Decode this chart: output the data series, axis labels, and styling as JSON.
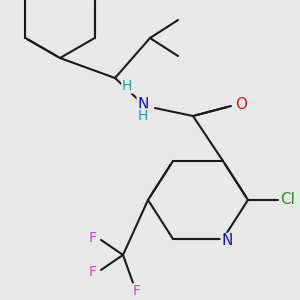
{
  "background_color": "#e8e8e8",
  "bond_color": "#1a1a1a",
  "atom_colors": {
    "N": "#1010cc",
    "O": "#cc2020",
    "Cl": "#2d8c2d",
    "F": "#cc44cc",
    "H": "#2a9a9a",
    "C": "#1a1a1a"
  },
  "lw": 1.5,
  "fs": 10
}
